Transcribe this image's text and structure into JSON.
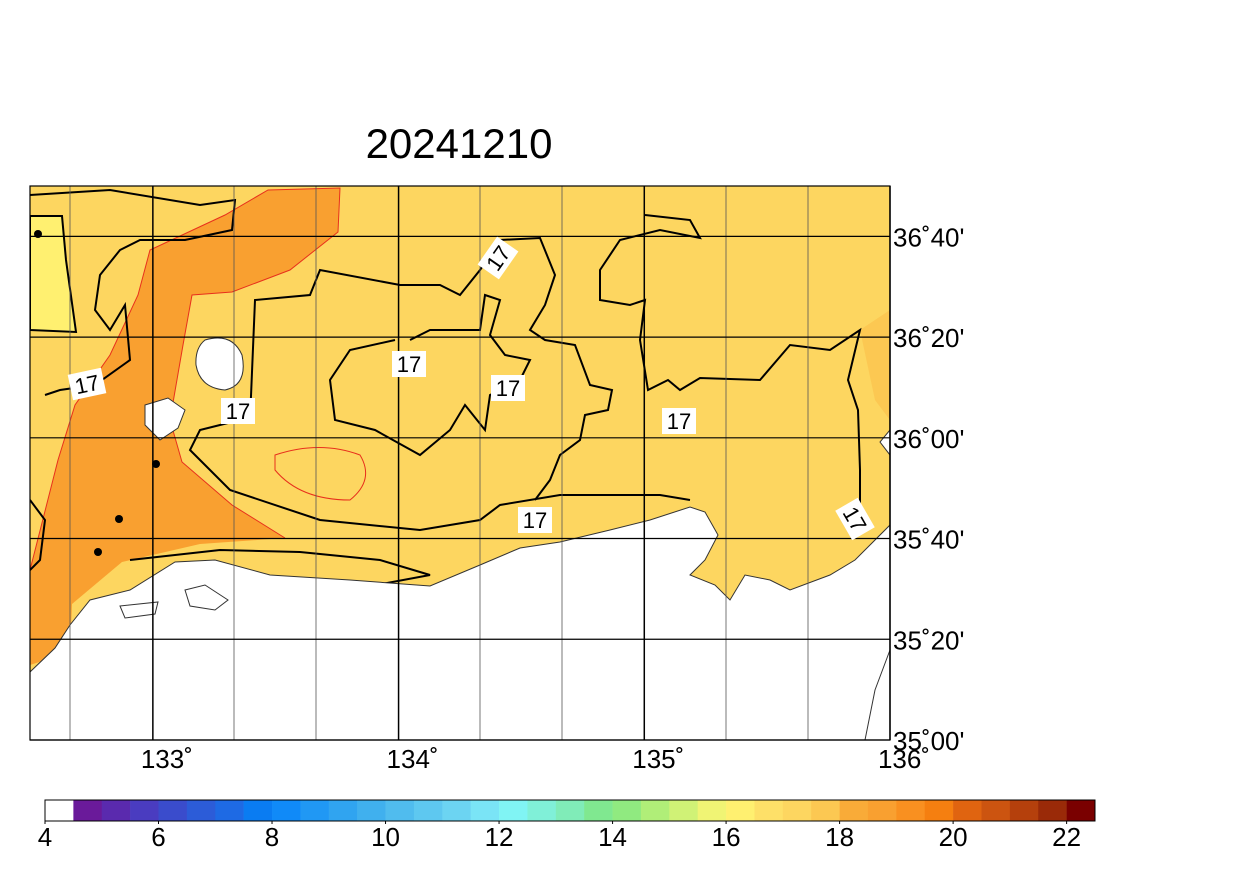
{
  "title": "20241210",
  "map": {
    "xlim": [
      132.5,
      136
    ],
    "ylim": [
      35,
      36.8333
    ],
    "xticks": [
      {
        "value": 133,
        "label": "133˚"
      },
      {
        "value": 134,
        "label": "134˚"
      },
      {
        "value": 135,
        "label": "135˚"
      },
      {
        "value": 136,
        "label": "136˚"
      }
    ],
    "yticks": [
      {
        "value": 36.6667,
        "label": "36˚40'"
      },
      {
        "value": 36.3333,
        "label": "36˚20'"
      },
      {
        "value": 36,
        "label": "36˚00'"
      },
      {
        "value": 35.6667,
        "label": "35˚40'"
      },
      {
        "value": 35.3333,
        "label": "35˚20'"
      },
      {
        "value": 35,
        "label": "35˚00'"
      }
    ],
    "contour_labels": [
      "17",
      "17",
      "17",
      "17",
      "17",
      "17",
      "17",
      "17"
    ]
  },
  "colorbar": {
    "lim": [
      4,
      22.5
    ],
    "ticks": [
      4,
      6,
      8,
      10,
      12,
      14,
      16,
      18,
      20,
      22
    ],
    "colors": [
      "#ffffff",
      "#6a1a9a",
      "#5a2aae",
      "#4a3cc0",
      "#3a4ccc",
      "#2c5cd8",
      "#1e6ae4",
      "#0a7cf2",
      "#108af8",
      "#2098f4",
      "#30a4f0",
      "#40b0ee",
      "#50bcee",
      "#5ec8f0",
      "#6cd4f2",
      "#7ae4f6",
      "#80f4f4",
      "#80f0d8",
      "#80ecb8",
      "#80e890",
      "#90ea80",
      "#b0ee78",
      "#d0f276",
      "#f0f474",
      "#fff070",
      "#fee068",
      "#fdd660",
      "#fcc852",
      "#f9ab38",
      "#f9a030",
      "#f99020",
      "#f57f10",
      "#e06410",
      "#cc5410",
      "#b5400c",
      "#9a2a08",
      "#7a0000"
    ]
  }
}
